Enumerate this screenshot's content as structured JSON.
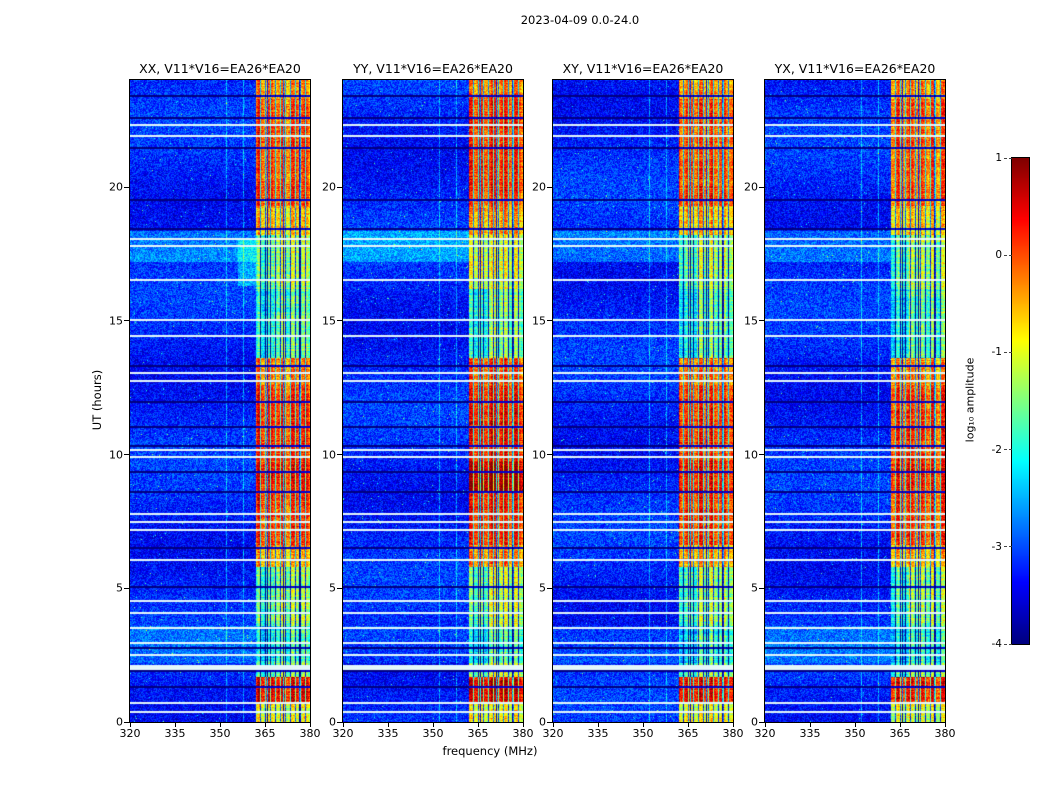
{
  "chart_data": {
    "type": "heatmap",
    "title": "2023-04-09 0.0-24.0",
    "xlabel": "frequency (MHz)",
    "ylabel": "UT (hours)",
    "x_range": [
      320,
      380
    ],
    "x_ticks": [
      320,
      335,
      350,
      365,
      380
    ],
    "y_range": [
      0,
      24
    ],
    "y_ticks": [
      0,
      5,
      10,
      15,
      20
    ],
    "panels": [
      {
        "pol": "XX",
        "title": "XX, V11*V16=EA26*EA20"
      },
      {
        "pol": "YY",
        "title": "YY, V11*V16=EA26*EA20"
      },
      {
        "pol": "XY",
        "title": "XY, V11*V16=EA26*EA20"
      },
      {
        "pol": "YX",
        "title": "YX, V11*V16=EA26*EA20"
      }
    ],
    "colorbar": {
      "label": "log₁₀ amplitude",
      "range": [
        -4,
        1
      ],
      "ticks": [
        1,
        0,
        -1,
        -2,
        -3,
        -4
      ],
      "colormap": "jet"
    },
    "background_log10_amp": [
      -4.0,
      -2.8
    ],
    "rfi_band_mhz": [
      362,
      380
    ],
    "faint_columns_mhz": [
      352,
      357.5
    ],
    "band_time_profile": [
      {
        "ut": [
          0,
          0.75
        ],
        "amp": -1.0
      },
      {
        "ut": [
          0.75,
          1.7
        ],
        "amp": 0.35
      },
      {
        "ut": [
          1.7,
          2.2
        ],
        "amp": -1.3
      },
      {
        "ut": [
          2.2,
          3.6
        ],
        "amp": -1.8
      },
      {
        "ut": [
          3.6,
          5.8
        ],
        "amp": -1.3
      },
      {
        "ut": [
          5.8,
          6.6
        ],
        "amp": -0.5
      },
      {
        "ut": [
          6.6,
          8.6
        ],
        "amp": 0.1
      },
      {
        "ut": [
          8.6,
          9.7
        ],
        "amp": 0.3
      },
      {
        "ut": [
          9.7,
          12.6
        ],
        "amp": 0.15
      },
      {
        "ut": [
          12.6,
          13.6
        ],
        "amp": -0.2
      },
      {
        "ut": [
          13.6,
          16.2
        ],
        "amp": -1.6
      },
      {
        "ut": [
          16.2,
          18.2
        ],
        "amp": -1.2
      },
      {
        "ut": [
          18.2,
          19.3
        ],
        "amp": -0.6
      },
      {
        "ut": [
          19.3,
          23.3
        ],
        "amp": 0.0
      },
      {
        "ut": [
          23.3,
          24
        ],
        "amp": -0.35
      }
    ],
    "white_row_times_ut": [
      0.4,
      0.75,
      2.55,
      3.0,
      3.55,
      4.1,
      4.55,
      6.1,
      7.2,
      7.5,
      7.8,
      9.95,
      10.2,
      12.8,
      13.1,
      14.45,
      15.05,
      16.55,
      17.85,
      18.1,
      21.95,
      22.35
    ],
    "thick_white_row_times_ut": [
      2.05
    ],
    "dark_row_times_ut": [
      1.35,
      1.95,
      2.8,
      5.1,
      6.55,
      8.65,
      9.4,
      10.35,
      11.05,
      12.0,
      13.35,
      18.45,
      19.55,
      21.5,
      22.6,
      23.45
    ],
    "panel_band_gain": [
      0,
      0.15,
      -0.05,
      -0.05
    ]
  }
}
